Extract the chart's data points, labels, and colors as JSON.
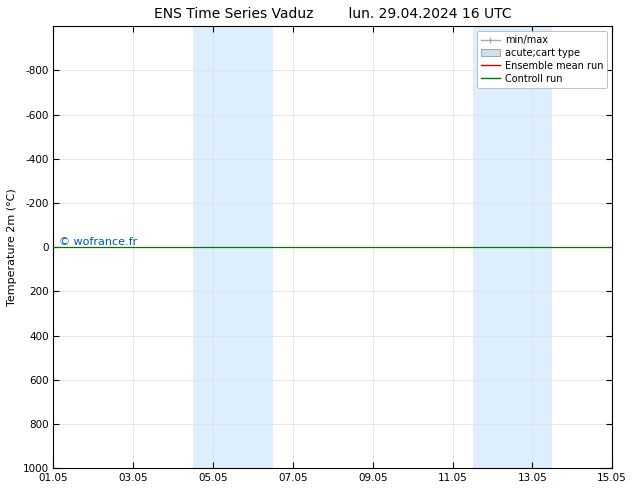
{
  "title_left": "ENS Time Series Vaduz",
  "title_right": "lun. 29.04.2024 16 UTC",
  "ylabel": "Temperature 2m (°C)",
  "xlabel": "",
  "xlim": [
    0,
    14
  ],
  "ylim": [
    1000,
    -1000
  ],
  "yticks": [
    -800,
    -600,
    -400,
    -200,
    0,
    200,
    400,
    600,
    800,
    1000
  ],
  "xtick_labels": [
    "01.05",
    "03.05",
    "05.05",
    "07.05",
    "09.05",
    "11.05",
    "13.05",
    "15.05"
  ],
  "xtick_positions": [
    0,
    2,
    4,
    6,
    8,
    10,
    12,
    14
  ],
  "background_color": "#ffffff",
  "plot_bg_color": "#ffffff",
  "shaded_regions": [
    {
      "xmin": 3.5,
      "xmax": 5.5,
      "color": "#ddeeff"
    },
    {
      "xmin": 10.5,
      "xmax": 12.5,
      "color": "#ddeeff"
    }
  ],
  "green_line_y": 0,
  "red_line_y": 0,
  "watermark": "© wofrance.fr",
  "watermark_color": "#0055bb",
  "legend_items": [
    {
      "label": "min/max",
      "color": "#aaaaaa",
      "lw": 1.0,
      "type": "line_with_caps"
    },
    {
      "label": "acute;cart type",
      "color": "#cce0f0",
      "type": "rect"
    },
    {
      "label": "Ensemble mean run",
      "color": "#cc0000",
      "lw": 1.0,
      "type": "line"
    },
    {
      "label": "Controll run",
      "color": "#007700",
      "lw": 1.0,
      "type": "line"
    }
  ],
  "title_fontsize": 10,
  "tick_fontsize": 7.5,
  "ylabel_fontsize": 8,
  "watermark_fontsize": 8,
  "legend_fontsize": 7,
  "grid_color": "#dddddd",
  "spine_color": "#000000"
}
